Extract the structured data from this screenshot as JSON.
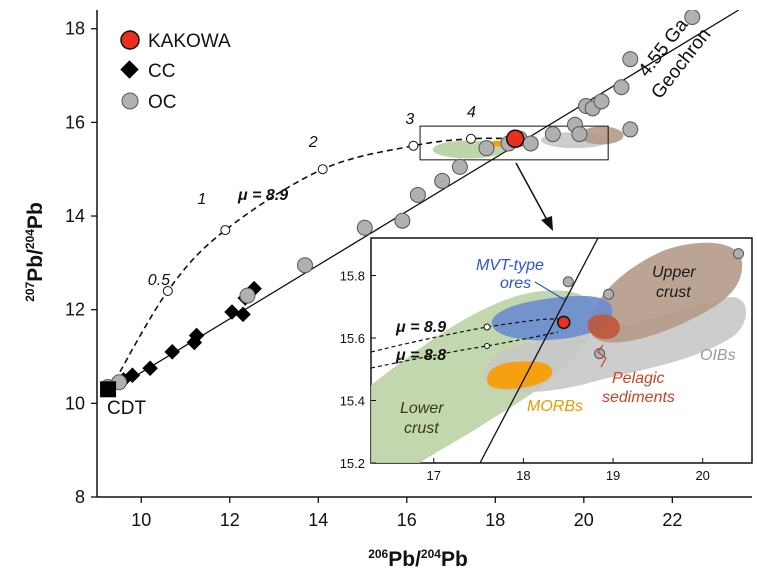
{
  "chart_data": {
    "type": "scatter",
    "xlabel": {
      "sup": "206",
      "main": "Pb/",
      "sup2": "204",
      "main2": "Pb"
    },
    "ylabel": {
      "sup": "207",
      "main": "Pb/",
      "sup2": "204",
      "main2": "Pb"
    },
    "xlim": [
      9,
      23.8
    ],
    "ylim": [
      8,
      18.4
    ],
    "x_ticks": [
      "10",
      "12",
      "14",
      "16",
      "18",
      "20",
      "22"
    ],
    "y_ticks": [
      "8",
      "10",
      "12",
      "14",
      "16",
      "18"
    ],
    "legend": {
      "placement": "top-left",
      "entries": [
        {
          "label": "KAKOWA",
          "marker": "circle",
          "color": "#e8301c"
        },
        {
          "label": "CC",
          "marker": "diamond",
          "color": "#000000"
        },
        {
          "label": "OC",
          "marker": "circle",
          "color": "#b0b0b0"
        }
      ]
    },
    "series": [
      {
        "name": "KAKOWA",
        "points": [
          [
            18.45,
            15.65
          ]
        ]
      },
      {
        "name": "CC",
        "points": [
          [
            9.6,
            10.5
          ],
          [
            9.8,
            10.6
          ],
          [
            10.2,
            10.75
          ],
          [
            10.7,
            11.1
          ],
          [
            11.2,
            11.3
          ],
          [
            11.25,
            11.45
          ],
          [
            12.05,
            11.95
          ],
          [
            12.3,
            11.9
          ],
          [
            12.35,
            12.25
          ],
          [
            12.55,
            12.45
          ]
        ]
      },
      {
        "name": "OC",
        "points": [
          [
            9.25,
            10.35
          ],
          [
            9.5,
            10.45
          ],
          [
            12.4,
            12.3
          ],
          [
            13.7,
            12.95
          ],
          [
            15.05,
            13.75
          ],
          [
            15.9,
            13.9
          ],
          [
            16.25,
            14.45
          ],
          [
            16.8,
            14.75
          ],
          [
            17.2,
            15.05
          ],
          [
            17.8,
            15.45
          ],
          [
            18.3,
            15.55
          ],
          [
            18.55,
            15.65
          ],
          [
            18.8,
            15.55
          ],
          [
            19.3,
            15.75
          ],
          [
            19.8,
            15.95
          ],
          [
            19.9,
            15.75
          ],
          [
            20.05,
            16.35
          ],
          [
            20.2,
            16.3
          ],
          [
            20.4,
            16.45
          ],
          [
            20.85,
            16.75
          ],
          [
            21.05,
            17.35
          ],
          [
            21.05,
            15.85
          ],
          [
            22.45,
            18.25
          ]
        ]
      }
    ],
    "mu_curve": {
      "label": "μ = 8.9",
      "points": [
        [
          9.3,
          10.3
        ],
        [
          10.6,
          12.4
        ],
        [
          11.9,
          13.7
        ],
        [
          14.1,
          15.0
        ],
        [
          16.15,
          15.5
        ],
        [
          17.45,
          15.65
        ],
        [
          18.45,
          15.65
        ]
      ],
      "model_ages": [
        {
          "label": "0.5",
          "x": 10.6,
          "y": 12.4
        },
        {
          "label": "1",
          "x": 11.9,
          "y": 13.7
        },
        {
          "label": "2",
          "x": 14.1,
          "y": 15.0
        },
        {
          "label": "3",
          "x": 16.15,
          "y": 15.5
        },
        {
          "label": "4",
          "x": 17.45,
          "y": 15.65
        }
      ]
    },
    "reference_line": {
      "points": [
        [
          9.2,
          10.2
        ],
        [
          23.5,
          18.4
        ]
      ],
      "label_line1": "4.55 Ga",
      "label_line2": "Geochron"
    },
    "cdt_label": "CDT",
    "inset": {
      "xlim": [
        16.3,
        20.55
      ],
      "ylim": [
        15.2,
        15.92
      ],
      "x_ticks": [
        "17",
        "18",
        "19",
        "20"
      ],
      "y_ticks": [
        "15.2",
        "15.4",
        "15.6",
        "15.8"
      ],
      "mu_labels": [
        "μ = 8.9",
        "μ = 8.8"
      ],
      "regions": [
        {
          "name": "MVT-type ores",
          "label_line1": "MVT-type",
          "label_line2": "ores",
          "fill": "#5a7fc8",
          "text_color": "#2b55c9"
        },
        {
          "name": "Upper crust",
          "label_line1": "Upper",
          "label_line2": "crust",
          "fill": "#b49a87",
          "text_color": "#1a1a1a"
        },
        {
          "name": "OIBs",
          "label_line1": "OIBs",
          "label_line2": "",
          "fill": "#c4c4c4",
          "text_color": "#9a9a9a"
        },
        {
          "name": "Pelagic sediments",
          "label_line1": "Pelagic",
          "label_line2": "sediments",
          "fill": "#c0553a",
          "text_color": "#c0452a"
        },
        {
          "name": "MORBs",
          "label_line1": "MORBs",
          "label_line2": "",
          "fill": "#f0a010",
          "text_color": "#e89a00"
        },
        {
          "name": "Lower crust",
          "label_line1": "Lower",
          "label_line2": "crust",
          "fill": "#b8d0a0",
          "text_color": "#3a3a10"
        }
      ],
      "points": [
        {
          "series": "OC",
          "x": 18.5,
          "y": 15.78
        },
        {
          "series": "OC",
          "x": 18.95,
          "y": 15.74
        },
        {
          "series": "OC",
          "x": 18.85,
          "y": 15.55
        },
        {
          "series": "OC",
          "x": 20.4,
          "y": 15.87
        },
        {
          "series": "KAKOWA",
          "x": 18.45,
          "y": 15.65
        }
      ]
    }
  }
}
